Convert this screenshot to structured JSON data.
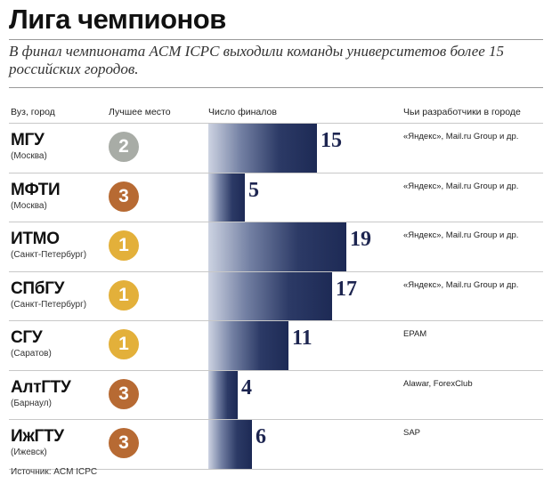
{
  "title": "Лига чемпионов",
  "subtitle": "В финал чемпионата ACM ICPC выходили команды университетов более 15 российских городов.",
  "headers": {
    "uni": "Вуз, город",
    "best": "Лучшее место",
    "finals": "Число финалов",
    "devs": "Чьи разработчики в городе"
  },
  "source": "Источник: ACM ICPC",
  "colors": {
    "gold": "#e3b03a",
    "silver": "#a8aca6",
    "bronze": "#b76a33",
    "bar_dark": "#1d2a55"
  },
  "chart_data": {
    "type": "bar",
    "categories": [
      "МГУ",
      "МФТИ",
      "ИТМО",
      "СПбГУ",
      "СГУ",
      "АлтГТУ",
      "ИжГТУ"
    ],
    "values": [
      15,
      5,
      19,
      17,
      11,
      4,
      6
    ],
    "xlabel": "Число финалов",
    "xlim": [
      0,
      19
    ]
  },
  "rows": [
    {
      "name": "МГУ",
      "city": "(Москва)",
      "best": "2",
      "medal": "silver",
      "finals": "15",
      "devs": "«Яндекс», Mail.ru Group и др."
    },
    {
      "name": "МФТИ",
      "city": "(Москва)",
      "best": "3",
      "medal": "bronze",
      "finals": "5",
      "devs": "«Яндекс», Mail.ru Group и др."
    },
    {
      "name": "ИТМО",
      "city": "(Санкт-Петербург)",
      "best": "1",
      "medal": "gold",
      "finals": "19",
      "devs": "«Яндекс», Mail.ru Group и др."
    },
    {
      "name": "СПбГУ",
      "city": "(Санкт-Петербург)",
      "best": "1",
      "medal": "gold",
      "finals": "17",
      "devs": "«Яндекс», Mail.ru Group и др."
    },
    {
      "name": "СГУ",
      "city": "(Саратов)",
      "best": "1",
      "medal": "gold",
      "finals": "11",
      "devs": "EPAM"
    },
    {
      "name": "АлтГТУ",
      "city": "(Барнаул)",
      "best": "3",
      "medal": "bronze",
      "finals": "4",
      "devs": "Alawar, ForexClub"
    },
    {
      "name": "ИжГТУ",
      "city": "(Ижевск)",
      "best": "3",
      "medal": "bronze",
      "finals": "6",
      "devs": "SAP"
    }
  ]
}
